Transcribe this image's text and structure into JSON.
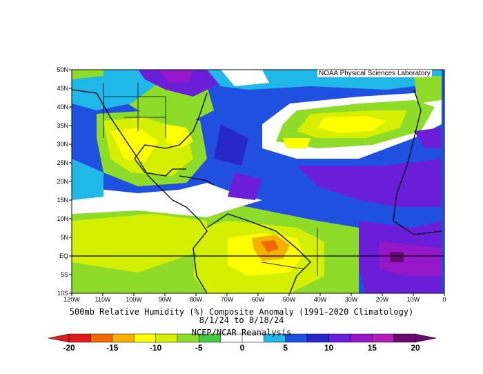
{
  "credit": "NOAA Physical Sciences Laboratory",
  "title": "500mb Relative Humidity (%) Composite Anomaly (1991-2020 Climatology)",
  "date_range": "8/1/24  to 8/18/24",
  "source": "NCEP/NCAR Reanalysis",
  "map": {
    "lat_ticks": [
      "50N",
      "45N",
      "40N",
      "35N",
      "30N",
      "25N",
      "20N",
      "15N",
      "10N",
      "5N",
      "EQ",
      "5S",
      "10S"
    ],
    "lon_ticks": [
      "120W",
      "110W",
      "100W",
      "90W",
      "80W",
      "70W",
      "60W",
      "50W",
      "40W",
      "30W",
      "20W",
      "10W",
      "0"
    ],
    "lat_range": [
      -10,
      50
    ],
    "lon_range": [
      -120,
      0
    ]
  },
  "colorbar": {
    "labels": [
      "-20",
      "-15",
      "-10",
      "-5",
      "0",
      "5",
      "10",
      "15",
      "20"
    ],
    "colors": [
      "#dd1e1e",
      "#f06a00",
      "#f5b000",
      "#ffff00",
      "#d4f000",
      "#8fdb2a",
      "#44cc44",
      "#ffffff",
      "#ffffff",
      "#20b8e8",
      "#2050e0",
      "#2828c8",
      "#6a1ed8",
      "#9418c8",
      "#b020b8",
      "#6a0a70"
    ]
  },
  "field_colors": {
    "white": "#ffffff",
    "light_blue": "#20b8e8",
    "dark_blue": "#2050e0",
    "purple": "#6a1ed8",
    "dark_purple": "#9418c8",
    "lime": "#8fdb2a",
    "green": "#44cc44",
    "yellow": "#ffff00",
    "gold": "#f5b000",
    "orange": "#f06a00",
    "light_green": "#d4f000"
  }
}
